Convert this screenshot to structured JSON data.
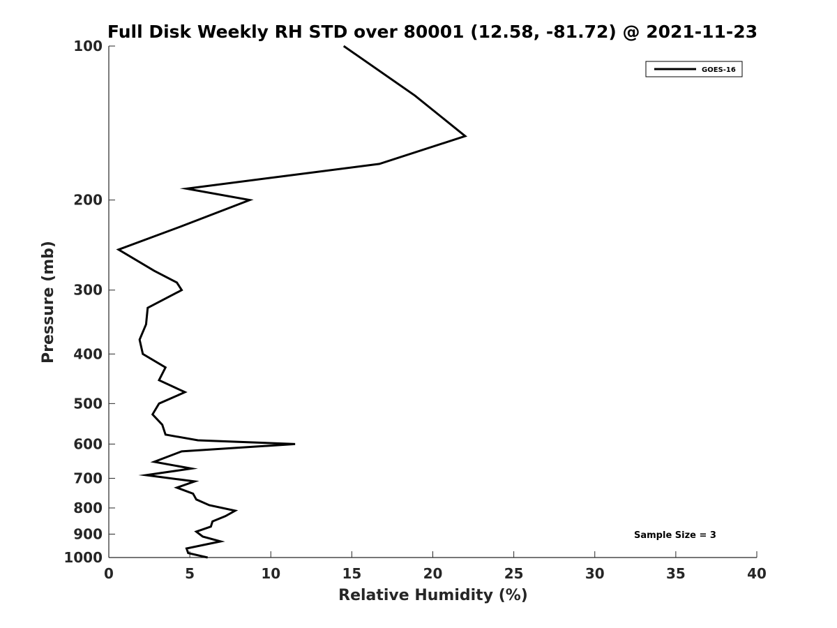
{
  "chart_data": {
    "type": "line",
    "title": "Full Disk Weekly RH STD over 80001 (12.58, -81.72) @ 2021-11-23",
    "xlabel": "Relative Humidity (%)",
    "ylabel": "Pressure (mb)",
    "xlim": [
      0,
      40
    ],
    "ylim": [
      100,
      1000
    ],
    "y_scale": "log",
    "y_reversed": true,
    "x_ticks": [
      0,
      5,
      10,
      15,
      20,
      25,
      30,
      35,
      40
    ],
    "y_ticks": [
      100,
      200,
      300,
      400,
      500,
      600,
      700,
      800,
      900,
      1000
    ],
    "grid": false,
    "legend_position": "top-right",
    "annotation": "Sample Size = 3",
    "series": [
      {
        "name": "GOES-16",
        "color": "#000000",
        "points": [
          {
            "x": 14.5,
            "y": 100
          },
          {
            "x": 18.9,
            "y": 125
          },
          {
            "x": 22.0,
            "y": 150
          },
          {
            "x": 16.7,
            "y": 170
          },
          {
            "x": 4.8,
            "y": 190
          },
          {
            "x": 8.7,
            "y": 200
          },
          {
            "x": 4.5,
            "y": 225
          },
          {
            "x": 0.6,
            "y": 250
          },
          {
            "x": 2.8,
            "y": 275
          },
          {
            "x": 4.2,
            "y": 290
          },
          {
            "x": 4.5,
            "y": 300
          },
          {
            "x": 2.4,
            "y": 325
          },
          {
            "x": 2.3,
            "y": 350
          },
          {
            "x": 1.9,
            "y": 375
          },
          {
            "x": 2.1,
            "y": 400
          },
          {
            "x": 3.5,
            "y": 425
          },
          {
            "x": 3.1,
            "y": 450
          },
          {
            "x": 4.7,
            "y": 475
          },
          {
            "x": 3.1,
            "y": 500
          },
          {
            "x": 2.7,
            "y": 525
          },
          {
            "x": 3.3,
            "y": 550
          },
          {
            "x": 3.5,
            "y": 575
          },
          {
            "x": 5.5,
            "y": 590
          },
          {
            "x": 11.5,
            "y": 600
          },
          {
            "x": 4.5,
            "y": 620
          },
          {
            "x": 2.8,
            "y": 650
          },
          {
            "x": 5.1,
            "y": 670
          },
          {
            "x": 2.3,
            "y": 690
          },
          {
            "x": 5.3,
            "y": 710
          },
          {
            "x": 4.2,
            "y": 730
          },
          {
            "x": 5.2,
            "y": 750
          },
          {
            "x": 5.4,
            "y": 770
          },
          {
            "x": 6.2,
            "y": 790
          },
          {
            "x": 7.8,
            "y": 810
          },
          {
            "x": 7.2,
            "y": 830
          },
          {
            "x": 6.4,
            "y": 850
          },
          {
            "x": 6.3,
            "y": 870
          },
          {
            "x": 5.4,
            "y": 890
          },
          {
            "x": 5.8,
            "y": 910
          },
          {
            "x": 6.9,
            "y": 930
          },
          {
            "x": 4.8,
            "y": 960
          },
          {
            "x": 4.9,
            "y": 980
          },
          {
            "x": 6.1,
            "y": 1000
          }
        ]
      }
    ]
  }
}
